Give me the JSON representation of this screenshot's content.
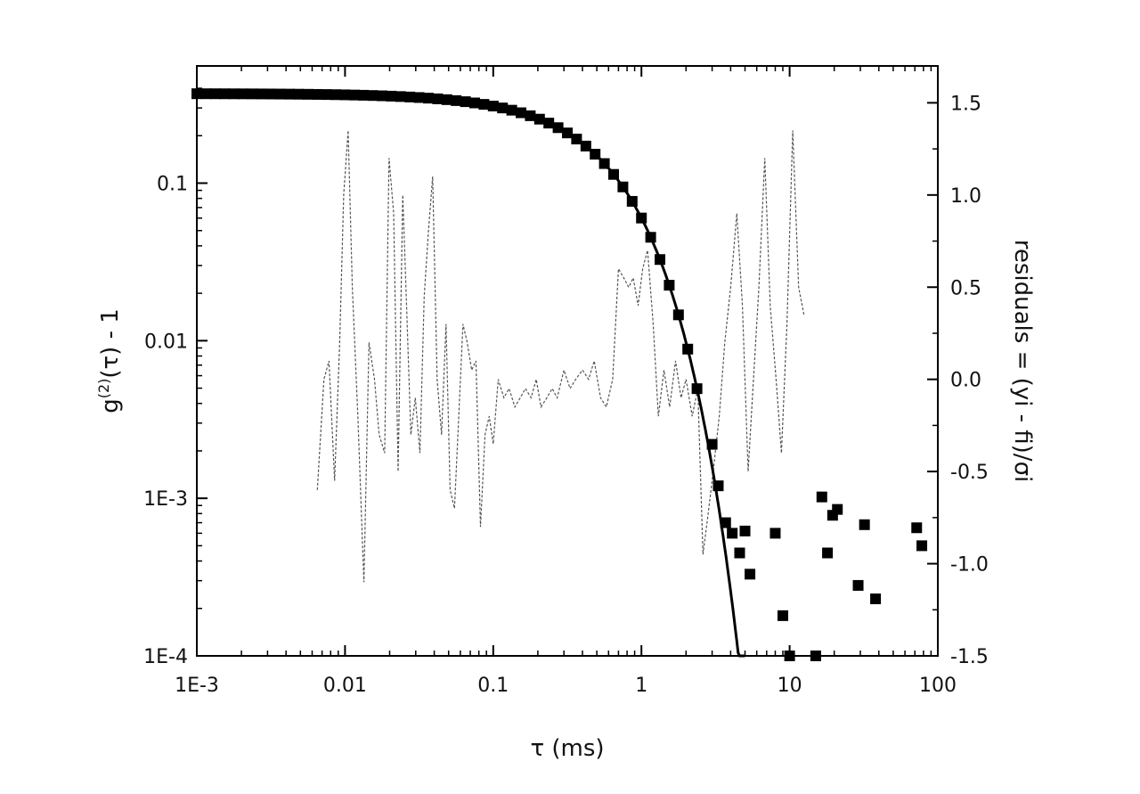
{
  "chart_data": {
    "type": "scatter",
    "x_axis": {
      "label": "τ  (ms)",
      "scale": "log",
      "range": [
        0.001,
        100
      ],
      "ticks": [
        {
          "value": 0.001,
          "label": "1E-3"
        },
        {
          "value": 0.01,
          "label": "0.01"
        },
        {
          "value": 0.1,
          "label": "0.1"
        },
        {
          "value": 1,
          "label": "1"
        },
        {
          "value": 10,
          "label": "10"
        },
        {
          "value": 100,
          "label": "100"
        }
      ]
    },
    "y_left_axis": {
      "label": "g(2)(τ) - 1",
      "label_main": "g",
      "label_sup": "(2)",
      "label_rest": "(τ) - 1",
      "scale": "log",
      "range": [
        0.0001,
        0.45
      ],
      "ticks": [
        {
          "value": 0.1,
          "label": "0.1"
        },
        {
          "value": 0.01,
          "label": "0.01"
        },
        {
          "value": 0.001,
          "label": "1E-3"
        },
        {
          "value": 0.0001,
          "label": "1E-4"
        }
      ]
    },
    "y_right_axis": {
      "label": "residuals = (yi - fi)/σi",
      "scale": "linear",
      "range": [
        -1.5,
        1.7
      ],
      "ticks": [
        {
          "value": 1.5,
          "label": "1.5"
        },
        {
          "value": 1.0,
          "label": "1.0"
        },
        {
          "value": 0.5,
          "label": "0.5"
        },
        {
          "value": 0.0,
          "label": "0.0"
        },
        {
          "value": -0.5,
          "label": "-0.5"
        },
        {
          "value": -1.0,
          "label": "-1.0"
        },
        {
          "value": -1.5,
          "label": "-1.5"
        }
      ]
    },
    "series": [
      {
        "kind": "data",
        "marker": "square",
        "points_dense": {
          "tau_start": 0.001,
          "tau_end": 2.5,
          "points_per_decade": 16
        },
        "points_extra": [
          [
            3.0,
            0.0022
          ],
          [
            3.3,
            0.0012
          ],
          [
            3.7,
            0.0007
          ],
          [
            4.1,
            0.0006
          ],
          [
            4.6,
            0.00045
          ],
          [
            5.0,
            0.00062
          ],
          [
            5.4,
            0.00033
          ],
          [
            8.0,
            0.0006
          ],
          [
            9.0,
            0.00018
          ],
          [
            10.0,
            0.0001
          ],
          [
            15.0,
            0.0001
          ],
          [
            16.5,
            0.00102
          ],
          [
            18.0,
            0.00045
          ],
          [
            19.5,
            0.00078
          ],
          [
            21.0,
            0.00085
          ],
          [
            29.0,
            0.00028
          ],
          [
            32.0,
            0.00068
          ],
          [
            38.0,
            0.00023
          ],
          [
            72.0,
            0.00065
          ],
          [
            78.0,
            0.0005
          ]
        ]
      },
      {
        "kind": "fit",
        "style": "solid",
        "model": "single-exponential decay",
        "amplitude": 0.37,
        "decay_time_ms": 0.55,
        "tau_start": 0.001,
        "tau_end": 5.0
      },
      {
        "kind": "residuals",
        "style": "dotted",
        "axis": "right",
        "x": [
          0.0065,
          0.0072,
          0.0078,
          0.0085,
          0.0092,
          0.0098,
          0.0105,
          0.0112,
          0.0122,
          0.0134,
          0.0145,
          0.0158,
          0.017,
          0.0185,
          0.0198,
          0.0213,
          0.0228,
          0.0245,
          0.026,
          0.0278,
          0.0298,
          0.032,
          0.0342,
          0.0365,
          0.039,
          0.0418,
          0.0448,
          0.048,
          0.0512,
          0.0548,
          0.0585,
          0.0625,
          0.0668,
          0.0715,
          0.0765,
          0.082,
          0.088,
          0.094,
          0.1,
          0.108,
          0.118,
          0.128,
          0.14,
          0.152,
          0.165,
          0.18,
          0.195,
          0.21,
          0.23,
          0.25,
          0.27,
          0.3,
          0.33,
          0.36,
          0.4,
          0.44,
          0.48,
          0.53,
          0.58,
          0.64,
          0.7,
          0.76,
          0.82,
          0.88,
          0.95,
          1.02,
          1.1,
          1.2,
          1.3,
          1.42,
          1.55,
          1.7,
          1.85,
          2.0,
          2.2,
          2.4,
          2.6,
          2.8,
          3.05,
          3.35,
          3.65,
          4.0,
          4.4,
          4.8,
          5.25,
          5.7,
          6.2,
          6.8,
          7.4,
          8.1,
          8.8,
          9.6,
          10.5,
          11.5,
          12.5
        ],
        "values": [
          -0.6,
          0.0,
          0.1,
          -0.55,
          0.2,
          1.0,
          1.35,
          0.5,
          -0.2,
          -1.1,
          0.2,
          0.0,
          -0.3,
          -0.4,
          1.2,
          0.9,
          -0.5,
          1.0,
          0.4,
          -0.3,
          -0.1,
          -0.4,
          0.45,
          0.8,
          1.1,
          0.0,
          -0.3,
          0.3,
          -0.6,
          -0.7,
          -0.2,
          0.3,
          0.2,
          0.05,
          0.1,
          -0.8,
          -0.3,
          -0.2,
          -0.35,
          0.0,
          -0.1,
          -0.05,
          -0.15,
          -0.1,
          -0.05,
          -0.1,
          0.0,
          -0.15,
          -0.1,
          -0.05,
          -0.1,
          0.05,
          -0.05,
          0.0,
          0.05,
          0.0,
          0.1,
          -0.1,
          -0.15,
          0.0,
          0.6,
          0.55,
          0.5,
          0.55,
          0.4,
          0.6,
          0.7,
          0.3,
          -0.2,
          0.05,
          -0.15,
          0.1,
          -0.1,
          0.0,
          -0.2,
          -0.05,
          -0.95,
          -0.75,
          -0.5,
          -0.2,
          0.2,
          0.5,
          0.9,
          0.4,
          -0.5,
          0.0,
          0.5,
          1.2,
          0.4,
          0.0,
          -0.4,
          0.3,
          1.35,
          0.5,
          0.35
        ]
      }
    ]
  }
}
